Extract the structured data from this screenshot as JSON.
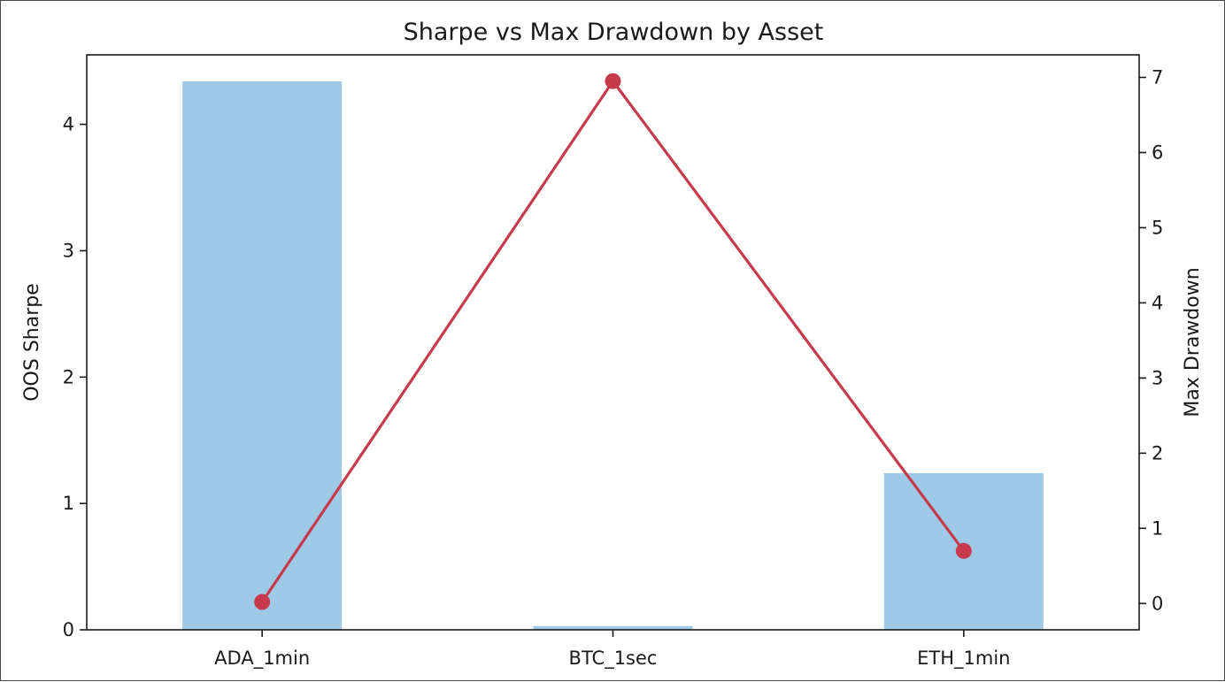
{
  "chart_data": {
    "type": "bar",
    "title": "Sharpe vs Max Drawdown by Asset",
    "categories": [
      "ADA_1min",
      "BTC_1sec",
      "ETH_1min"
    ],
    "series": [
      {
        "name": "OOS Sharpe",
        "kind": "bar",
        "axis": "left",
        "values": [
          4.34,
          0.03,
          1.24
        ],
        "color": "#9ecae8"
      },
      {
        "name": "Max Drawdown",
        "kind": "line",
        "axis": "right",
        "marker": "circle",
        "values": [
          0.02,
          6.95,
          0.7
        ],
        "color": "#c73a4c"
      }
    ],
    "ylabel": "OOS Sharpe",
    "y2label": "Max Drawdown",
    "ylim": [
      0,
      4.55
    ],
    "y2lim": [
      -0.35,
      7.3
    ],
    "yticks": [
      0,
      1,
      2,
      3,
      4
    ],
    "y2ticks": [
      0,
      1,
      2,
      3,
      4,
      5,
      6,
      7
    ],
    "grid": false,
    "legend": "none"
  }
}
